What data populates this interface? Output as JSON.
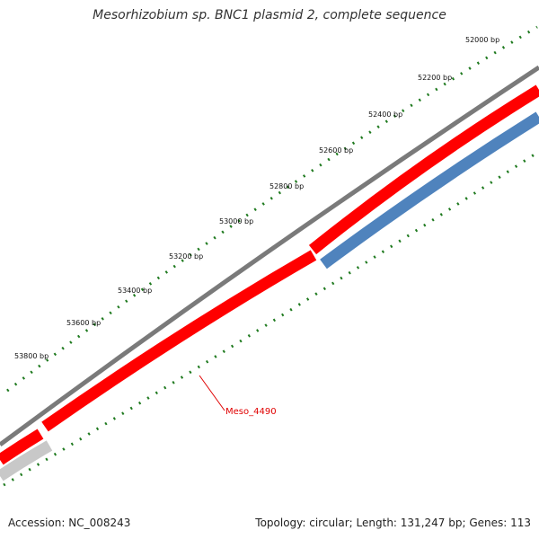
{
  "title": "Mesorhizobium sp. BNC1 plasmid 2, complete sequence",
  "accession_text": "Accession: NC_008243",
  "summary_text": "Topology: circular; Length: 131,247 bp; Genes: 113",
  "ticks": [
    "52000 bp",
    "52200 bp",
    "52400 bp",
    "52600 bp",
    "52800 bp",
    "53000 bp",
    "53200 bp",
    "53400 bp",
    "53600 bp",
    "53800 bp"
  ],
  "gene_label": "Meso_4490",
  "colors": {
    "backbone": "#7a7a7a",
    "forward_gene": "#ff0000",
    "reverse_gene": "#4f83bd",
    "other_gene": "#c8c8c8",
    "tick": "#1f7a1f",
    "label": "#e00000"
  }
}
